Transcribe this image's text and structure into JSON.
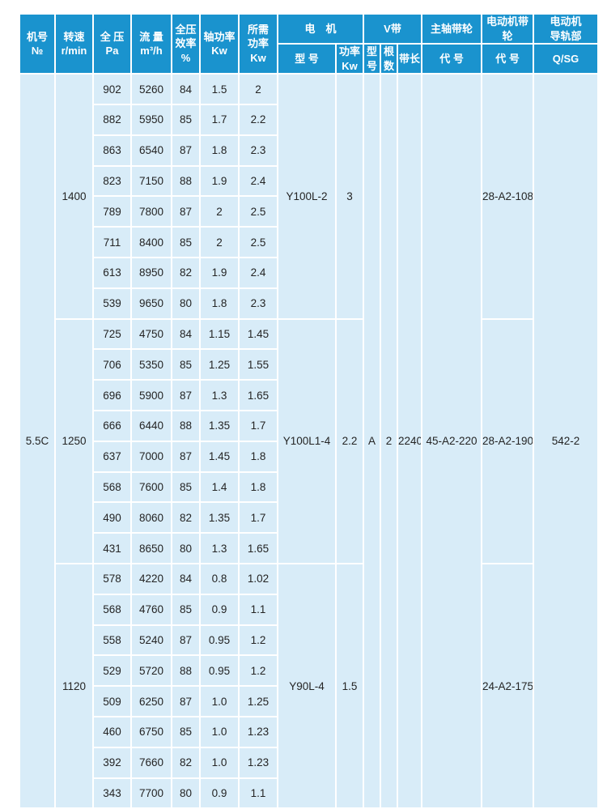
{
  "table": {
    "colors": {
      "header_bg": "#1a93ce",
      "body_bg": "#d8ecf8",
      "divider": "#ffffff",
      "header_text": "#ffffff",
      "body_text": "#242424"
    },
    "header": {
      "machine_no": "机号\n№",
      "speed": "转速\nr/min",
      "pressure": "全 压\nPa",
      "flow": "流 量\nm³/h",
      "efficiency": "全压\n效率\n%",
      "shaft_power": "轴功率\nKw",
      "required_power": "所需\n功率\nKw",
      "motor_group": "电　机",
      "motor_model": "型 号",
      "motor_power": "功率\nKw",
      "vbelt_group": "V带",
      "vbelt_type": "型\n号",
      "vbelt_count": "根\n数",
      "vbelt_length": "带长",
      "main_pulley_group": "主轴带轮",
      "main_pulley_code": "代 号",
      "motor_pulley_group": "电动机带轮",
      "motor_pulley_code": "代 号",
      "rail_group": "电动机\n导轨部",
      "rail_code": "Q/SG"
    },
    "machine_no": "5.5C",
    "shared": {
      "vbelt_type": "A",
      "vbelt_count": "2",
      "vbelt_length": "2240",
      "main_pulley_code": "45-A2-220",
      "rail_code": "542-2"
    },
    "groups": [
      {
        "speed": "1400",
        "motor_model": "Y100L-2",
        "motor_power": "3",
        "motor_pulley_code": "28-A2-108",
        "rows": [
          [
            "902",
            "5260",
            "84",
            "1.5",
            "2"
          ],
          [
            "882",
            "5950",
            "85",
            "1.7",
            "2.2"
          ],
          [
            "863",
            "6540",
            "87",
            "1.8",
            "2.3"
          ],
          [
            "823",
            "7150",
            "88",
            "1.9",
            "2.4"
          ],
          [
            "789",
            "7800",
            "87",
            "2",
            "2.5"
          ],
          [
            "711",
            "8400",
            "85",
            "2",
            "2.5"
          ],
          [
            "613",
            "8950",
            "82",
            "1.9",
            "2.4"
          ],
          [
            "539",
            "9650",
            "80",
            "1.8",
            "2.3"
          ]
        ]
      },
      {
        "speed": "1250",
        "motor_model": "Y100L1-4",
        "motor_power": "2.2",
        "motor_pulley_code": "28-A2-190",
        "rows": [
          [
            "725",
            "4750",
            "84",
            "1.15",
            "1.45"
          ],
          [
            "706",
            "5350",
            "85",
            "1.25",
            "1.55"
          ],
          [
            "696",
            "5900",
            "87",
            "1.3",
            "1.65"
          ],
          [
            "666",
            "6440",
            "88",
            "1.35",
            "1.7"
          ],
          [
            "637",
            "7000",
            "87",
            "1.45",
            "1.8"
          ],
          [
            "568",
            "7600",
            "85",
            "1.4",
            "1.8"
          ],
          [
            "490",
            "8060",
            "82",
            "1.35",
            "1.7"
          ],
          [
            "431",
            "8650",
            "80",
            "1.3",
            "1.65"
          ]
        ]
      },
      {
        "speed": "1120",
        "motor_model": "Y90L-4",
        "motor_power": "1.5",
        "motor_pulley_code": "24-A2-175",
        "rows": [
          [
            "578",
            "4220",
            "84",
            "0.8",
            "1.02"
          ],
          [
            "568",
            "4760",
            "85",
            "0.9",
            "1.1"
          ],
          [
            "558",
            "5240",
            "87",
            "0.95",
            "1.2"
          ],
          [
            "529",
            "5720",
            "88",
            "0.95",
            "1.2"
          ],
          [
            "509",
            "6250",
            "87",
            "1.0",
            "1.25"
          ],
          [
            "460",
            "6750",
            "85",
            "1.0",
            "1.23"
          ],
          [
            "392",
            "7660",
            "82",
            "1.0",
            "1.23"
          ],
          [
            "343",
            "7700",
            "80",
            "0.9",
            "1.1"
          ]
        ]
      }
    ]
  }
}
